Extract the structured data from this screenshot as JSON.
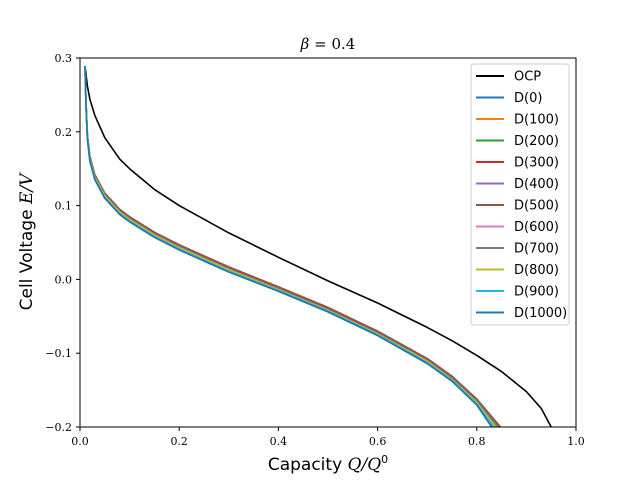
{
  "chart_data": {
    "type": "line",
    "title_symbol": "β",
    "title_value": "= 0.4",
    "xlabel_text": "Capacity",
    "xlabel_math": "Q/Q",
    "xlabel_sup": "0",
    "ylabel_text": "Cell Voltage",
    "ylabel_math": "E/V",
    "xlim": [
      0.0,
      1.0
    ],
    "ylim": [
      -0.2,
      0.3
    ],
    "xticks": [
      0.0,
      0.2,
      0.4,
      0.6,
      0.8,
      1.0
    ],
    "xtick_labels": [
      "0.0",
      "0.2",
      "0.4",
      "0.6",
      "0.8",
      "1.0"
    ],
    "yticks": [
      -0.2,
      -0.1,
      0.0,
      0.1,
      0.2,
      0.3
    ],
    "ytick_labels": [
      "−0.2",
      "−0.1",
      "0.0",
      "0.1",
      "0.2",
      "0.3"
    ],
    "legend_position": "top-right",
    "series": [
      {
        "name": "OCP",
        "color": "#000000",
        "x": [
          0.01,
          0.015,
          0.02,
          0.03,
          0.05,
          0.08,
          0.1,
          0.15,
          0.2,
          0.3,
          0.4,
          0.5,
          0.6,
          0.7,
          0.75,
          0.8,
          0.85,
          0.9,
          0.93,
          0.95
        ],
        "y": [
          0.289,
          0.262,
          0.244,
          0.222,
          0.192,
          0.163,
          0.15,
          0.122,
          0.1,
          0.063,
          0.03,
          -0.002,
          -0.032,
          -0.065,
          -0.083,
          -0.103,
          -0.125,
          -0.152,
          -0.175,
          -0.2
        ]
      },
      {
        "name": "D(0)",
        "color": "#1f77b4",
        "x": [
          0.01,
          0.012,
          0.015,
          0.02,
          0.03,
          0.05,
          0.08,
          0.1,
          0.15,
          0.2,
          0.3,
          0.4,
          0.5,
          0.6,
          0.7,
          0.75,
          0.8,
          0.83
        ],
        "y": [
          0.289,
          0.235,
          0.19,
          0.16,
          0.135,
          0.11,
          0.088,
          0.078,
          0.057,
          0.04,
          0.01,
          -0.016,
          -0.044,
          -0.076,
          -0.114,
          -0.138,
          -0.17,
          -0.2
        ]
      },
      {
        "name": "D(100)",
        "color": "#ff7f0e",
        "x": [
          0.01,
          0.012,
          0.015,
          0.02,
          0.03,
          0.05,
          0.08,
          0.1,
          0.15,
          0.2,
          0.3,
          0.4,
          0.5,
          0.6,
          0.7,
          0.75,
          0.8,
          0.845
        ],
        "y": [
          0.289,
          0.24,
          0.195,
          0.166,
          0.141,
          0.116,
          0.094,
          0.084,
          0.063,
          0.046,
          0.016,
          -0.011,
          -0.039,
          -0.071,
          -0.108,
          -0.132,
          -0.163,
          -0.2
        ]
      },
      {
        "name": "D(200)",
        "color": "#2ca02c",
        "x": [
          0.01,
          0.012,
          0.015,
          0.02,
          0.03,
          0.05,
          0.08,
          0.1,
          0.15,
          0.2,
          0.3,
          0.4,
          0.5,
          0.6,
          0.7,
          0.75,
          0.8,
          0.844
        ],
        "y": [
          0.289,
          0.239,
          0.194,
          0.165,
          0.14,
          0.115,
          0.093,
          0.083,
          0.062,
          0.045,
          0.015,
          -0.012,
          -0.04,
          -0.072,
          -0.109,
          -0.133,
          -0.164,
          -0.2
        ]
      },
      {
        "name": "D(300)",
        "color": "#d62728",
        "x": [
          0.01,
          0.012,
          0.015,
          0.02,
          0.03,
          0.05,
          0.08,
          0.1,
          0.15,
          0.2,
          0.3,
          0.4,
          0.5,
          0.6,
          0.7,
          0.75,
          0.8,
          0.843
        ],
        "y": [
          0.289,
          0.239,
          0.194,
          0.165,
          0.14,
          0.115,
          0.093,
          0.083,
          0.062,
          0.045,
          0.015,
          -0.012,
          -0.04,
          -0.072,
          -0.109,
          -0.133,
          -0.165,
          -0.2
        ]
      },
      {
        "name": "D(400)",
        "color": "#9467bd",
        "x": [
          0.01,
          0.012,
          0.015,
          0.02,
          0.03,
          0.05,
          0.08,
          0.1,
          0.15,
          0.2,
          0.3,
          0.4,
          0.5,
          0.6,
          0.7,
          0.75,
          0.8,
          0.842
        ],
        "y": [
          0.289,
          0.238,
          0.193,
          0.164,
          0.139,
          0.114,
          0.092,
          0.082,
          0.061,
          0.044,
          0.014,
          -0.013,
          -0.041,
          -0.073,
          -0.11,
          -0.134,
          -0.165,
          -0.2
        ]
      },
      {
        "name": "D(500)",
        "color": "#8c564b",
        "x": [
          0.01,
          0.012,
          0.015,
          0.02,
          0.03,
          0.05,
          0.08,
          0.1,
          0.15,
          0.2,
          0.3,
          0.4,
          0.5,
          0.6,
          0.7,
          0.75,
          0.8,
          0.848
        ],
        "y": [
          0.289,
          0.241,
          0.196,
          0.167,
          0.142,
          0.117,
          0.095,
          0.085,
          0.064,
          0.047,
          0.017,
          -0.01,
          -0.038,
          -0.07,
          -0.107,
          -0.131,
          -0.162,
          -0.2
        ]
      },
      {
        "name": "D(600)",
        "color": "#e377c2",
        "x": [
          0.01,
          0.012,
          0.015,
          0.02,
          0.03,
          0.05,
          0.08,
          0.1,
          0.15,
          0.2,
          0.3,
          0.4,
          0.5,
          0.6,
          0.7,
          0.75,
          0.8,
          0.841
        ],
        "y": [
          0.289,
          0.238,
          0.193,
          0.164,
          0.139,
          0.114,
          0.092,
          0.082,
          0.061,
          0.044,
          0.014,
          -0.013,
          -0.041,
          -0.073,
          -0.11,
          -0.135,
          -0.166,
          -0.2
        ]
      },
      {
        "name": "D(700)",
        "color": "#7f7f7f",
        "x": [
          0.01,
          0.012,
          0.015,
          0.02,
          0.03,
          0.05,
          0.08,
          0.1,
          0.15,
          0.2,
          0.3,
          0.4,
          0.5,
          0.6,
          0.7,
          0.75,
          0.8,
          0.842
        ],
        "y": [
          0.289,
          0.238,
          0.193,
          0.164,
          0.139,
          0.114,
          0.092,
          0.082,
          0.061,
          0.044,
          0.014,
          -0.013,
          -0.041,
          -0.073,
          -0.11,
          -0.134,
          -0.165,
          -0.2
        ]
      },
      {
        "name": "D(800)",
        "color": "#bcbd22",
        "x": [
          0.01,
          0.012,
          0.015,
          0.02,
          0.03,
          0.05,
          0.08,
          0.1,
          0.15,
          0.2,
          0.3,
          0.4,
          0.5,
          0.6,
          0.7,
          0.75,
          0.8,
          0.838
        ],
        "y": [
          0.289,
          0.237,
          0.192,
          0.163,
          0.138,
          0.113,
          0.091,
          0.081,
          0.06,
          0.043,
          0.013,
          -0.014,
          -0.042,
          -0.074,
          -0.111,
          -0.136,
          -0.167,
          -0.2
        ]
      },
      {
        "name": "D(900)",
        "color": "#17becf",
        "x": [
          0.01,
          0.012,
          0.015,
          0.02,
          0.03,
          0.05,
          0.08,
          0.1,
          0.15,
          0.2,
          0.3,
          0.4,
          0.5,
          0.6,
          0.7,
          0.75,
          0.8,
          0.834
        ],
        "y": [
          0.289,
          0.236,
          0.191,
          0.161,
          0.136,
          0.111,
          0.089,
          0.079,
          0.058,
          0.041,
          0.011,
          -0.015,
          -0.043,
          -0.075,
          -0.113,
          -0.137,
          -0.169,
          -0.2
        ]
      },
      {
        "name": "D(1000)",
        "color": "#1f77b4",
        "x": [
          0.01,
          0.012,
          0.015,
          0.02,
          0.03,
          0.05,
          0.08,
          0.1,
          0.15,
          0.2,
          0.3,
          0.4,
          0.5,
          0.6,
          0.7,
          0.75,
          0.8,
          0.83
        ],
        "y": [
          0.289,
          0.235,
          0.19,
          0.16,
          0.135,
          0.11,
          0.088,
          0.078,
          0.057,
          0.04,
          0.01,
          -0.016,
          -0.044,
          -0.076,
          -0.114,
          -0.138,
          -0.17,
          -0.2
        ]
      }
    ]
  }
}
